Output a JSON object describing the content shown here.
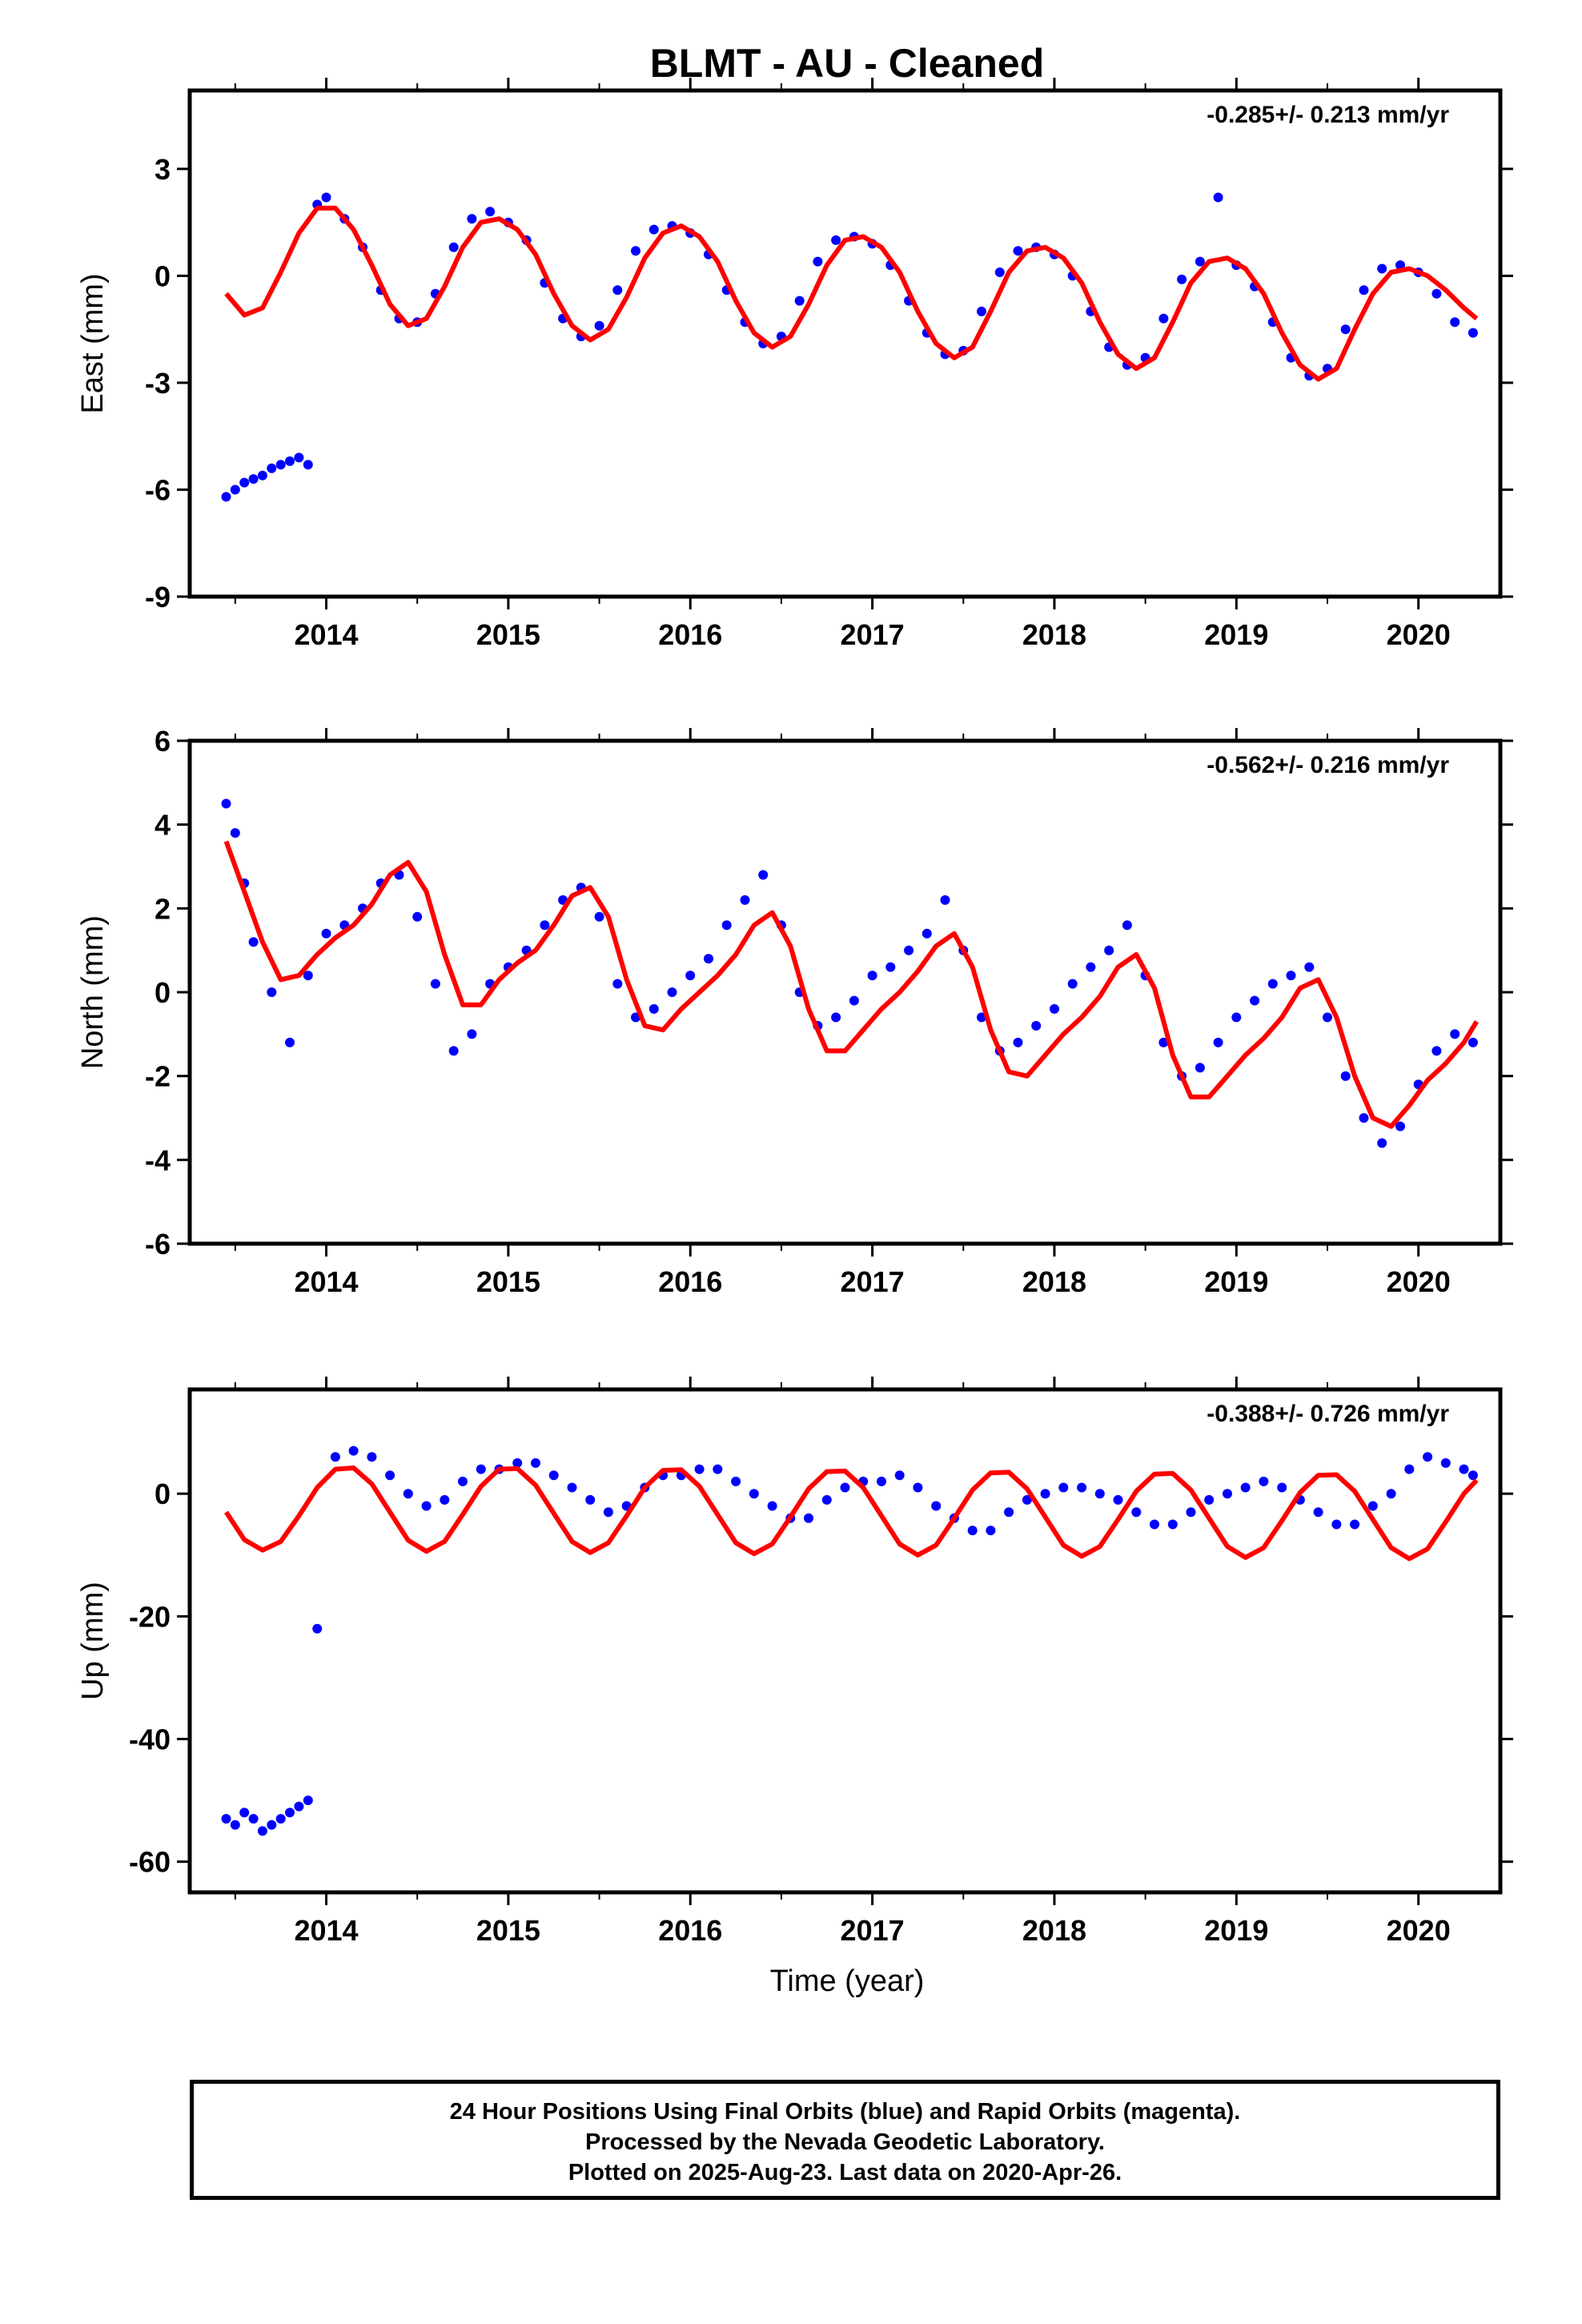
{
  "title": "BLMT  - AU - Cleaned",
  "xlabel": "Time (year)",
  "footer": [
    "24 Hour Positions Using Final Orbits (blue) and Rapid Orbits (magenta).",
    "Processed by the Nevada Geodetic Laboratory.",
    "Plotted on 2025-Aug-23. Last data on 2020-Apr-26."
  ],
  "colors": {
    "final_orbits": "#0000ff",
    "model_fit": "#ff0000",
    "axes": "#000000"
  },
  "chart_data": [
    {
      "type": "scatter",
      "ylabel": "East (mm)",
      "rate_label": "-0.285+/- 0.213 mm/yr",
      "xlim": [
        2013.25,
        2020.45
      ],
      "ylim": [
        -9,
        5.2
      ],
      "yticks": [
        -9,
        -6,
        -3,
        0,
        3
      ],
      "xticks": [
        2014,
        2015,
        2016,
        2017,
        2018,
        2019,
        2020
      ],
      "series": [
        {
          "kind": "scatter",
          "color": "#0000ff",
          "x": [
            2013.45,
            2013.5,
            2013.55,
            2013.6,
            2013.65,
            2013.7,
            2013.75,
            2013.8,
            2013.85,
            2013.9,
            2013.95,
            2014.0,
            2014.1,
            2014.2,
            2014.3,
            2014.4,
            2014.5,
            2014.6,
            2014.7,
            2014.8,
            2014.9,
            2015.0,
            2015.1,
            2015.2,
            2015.3,
            2015.4,
            2015.5,
            2015.6,
            2015.7,
            2015.8,
            2015.9,
            2016.0,
            2016.1,
            2016.2,
            2016.3,
            2016.4,
            2016.5,
            2016.6,
            2016.7,
            2016.8,
            2016.9,
            2017.0,
            2017.1,
            2017.2,
            2017.3,
            2017.4,
            2017.5,
            2017.6,
            2017.7,
            2017.8,
            2017.9,
            2018.0,
            2018.1,
            2018.2,
            2018.3,
            2018.4,
            2018.5,
            2018.6,
            2018.7,
            2018.8,
            2018.9,
            2019.0,
            2019.1,
            2019.2,
            2019.3,
            2019.4,
            2019.5,
            2019.6,
            2019.7,
            2019.8,
            2019.9,
            2020.0,
            2020.1,
            2020.2,
            2020.3
          ],
          "y": [
            -6.2,
            -6.0,
            -5.8,
            -5.7,
            -5.6,
            -5.4,
            -5.3,
            -5.2,
            -5.1,
            -5.3,
            2.0,
            2.2,
            1.6,
            0.8,
            -0.4,
            -1.2,
            -1.3,
            -0.5,
            0.8,
            1.6,
            1.8,
            1.5,
            1.0,
            -0.2,
            -1.2,
            -1.7,
            -1.4,
            -0.4,
            0.7,
            1.3,
            1.4,
            1.2,
            0.6,
            -0.4,
            -1.3,
            -1.9,
            -1.7,
            -0.7,
            0.4,
            1.0,
            1.1,
            0.9,
            0.3,
            -0.7,
            -1.6,
            -2.2,
            -2.1,
            -1.0,
            0.1,
            0.7,
            0.8,
            0.6,
            0.0,
            -1.0,
            -2.0,
            -2.5,
            -2.3,
            -1.2,
            -0.1,
            0.4,
            2.2,
            0.3,
            -0.3,
            -1.3,
            -2.3,
            -2.8,
            -2.6,
            -1.5,
            -0.4,
            0.2,
            0.3,
            0.1,
            -0.5,
            -1.3,
            -1.6
          ]
        },
        {
          "kind": "line",
          "color": "#ff0000",
          "x": [
            2013.45,
            2013.55,
            2013.65,
            2013.75,
            2013.85,
            2013.95,
            2014.05,
            2014.15,
            2014.25,
            2014.35,
            2014.45,
            2014.55,
            2014.65,
            2014.75,
            2014.85,
            2014.95,
            2015.05,
            2015.15,
            2015.25,
            2015.35,
            2015.45,
            2015.55,
            2015.65,
            2015.75,
            2015.85,
            2015.95,
            2016.05,
            2016.15,
            2016.25,
            2016.35,
            2016.45,
            2016.55,
            2016.65,
            2016.75,
            2016.85,
            2016.95,
            2017.05,
            2017.15,
            2017.25,
            2017.35,
            2017.45,
            2017.55,
            2017.65,
            2017.75,
            2017.85,
            2017.95,
            2018.05,
            2018.15,
            2018.25,
            2018.35,
            2018.45,
            2018.55,
            2018.65,
            2018.75,
            2018.85,
            2018.95,
            2019.05,
            2019.15,
            2019.25,
            2019.35,
            2019.45,
            2019.55,
            2019.65,
            2019.75,
            2019.85,
            2019.95,
            2020.05,
            2020.15,
            2020.25,
            2020.32
          ],
          "y": [
            -0.5,
            -1.1,
            -0.9,
            0.1,
            1.2,
            1.9,
            1.9,
            1.3,
            0.3,
            -0.8,
            -1.4,
            -1.2,
            -0.3,
            0.8,
            1.5,
            1.6,
            1.3,
            0.6,
            -0.5,
            -1.4,
            -1.8,
            -1.5,
            -0.6,
            0.5,
            1.2,
            1.4,
            1.1,
            0.4,
            -0.7,
            -1.6,
            -2.0,
            -1.7,
            -0.8,
            0.3,
            1.0,
            1.1,
            0.8,
            0.1,
            -1.0,
            -1.9,
            -2.3,
            -2.0,
            -1.0,
            0.1,
            0.7,
            0.8,
            0.5,
            -0.2,
            -1.3,
            -2.2,
            -2.6,
            -2.3,
            -1.3,
            -0.2,
            0.4,
            0.5,
            0.2,
            -0.5,
            -1.6,
            -2.5,
            -2.9,
            -2.6,
            -1.5,
            -0.5,
            0.1,
            0.2,
            0.0,
            -0.4,
            -0.9,
            -1.2
          ]
        }
      ]
    },
    {
      "type": "scatter",
      "ylabel": "North (mm)",
      "rate_label": "-0.562+/- 0.216 mm/yr",
      "xlim": [
        2013.25,
        2020.45
      ],
      "ylim": [
        -6,
        6
      ],
      "yticks": [
        -6,
        -4,
        -2,
        0,
        2,
        4,
        6
      ],
      "xticks": [
        2014,
        2015,
        2016,
        2017,
        2018,
        2019,
        2020
      ],
      "series": [
        {
          "kind": "scatter",
          "color": "#0000ff",
          "x": [
            2013.45,
            2013.5,
            2013.55,
            2013.6,
            2013.7,
            2013.8,
            2013.9,
            2014.0,
            2014.1,
            2014.2,
            2014.3,
            2014.4,
            2014.5,
            2014.6,
            2014.7,
            2014.8,
            2014.9,
            2015.0,
            2015.1,
            2015.2,
            2015.3,
            2015.4,
            2015.5,
            2015.6,
            2015.7,
            2015.8,
            2015.9,
            2016.0,
            2016.1,
            2016.2,
            2016.3,
            2016.4,
            2016.5,
            2016.6,
            2016.7,
            2016.8,
            2016.9,
            2017.0,
            2017.1,
            2017.2,
            2017.3,
            2017.4,
            2017.5,
            2017.6,
            2017.7,
            2017.8,
            2017.9,
            2018.0,
            2018.1,
            2018.2,
            2018.3,
            2018.4,
            2018.5,
            2018.6,
            2018.7,
            2018.8,
            2018.9,
            2019.0,
            2019.1,
            2019.2,
            2019.3,
            2019.4,
            2019.5,
            2019.6,
            2019.7,
            2019.8,
            2019.9,
            2020.0,
            2020.1,
            2020.2,
            2020.3
          ],
          "y": [
            4.5,
            3.8,
            2.6,
            1.2,
            0.0,
            -1.2,
            0.4,
            1.4,
            1.6,
            2.0,
            2.6,
            2.8,
            1.8,
            0.2,
            -1.4,
            -1.0,
            0.2,
            0.6,
            1.0,
            1.6,
            2.2,
            2.5,
            1.8,
            0.2,
            -0.6,
            -0.4,
            0.0,
            0.4,
            0.8,
            1.6,
            2.2,
            2.8,
            1.6,
            0.0,
            -0.8,
            -0.6,
            -0.2,
            0.4,
            0.6,
            1.0,
            1.4,
            2.2,
            1.0,
            -0.6,
            -1.4,
            -1.2,
            -0.8,
            -0.4,
            0.2,
            0.6,
            1.0,
            1.6,
            0.4,
            -1.2,
            -2.0,
            -1.8,
            -1.2,
            -0.6,
            -0.2,
            0.2,
            0.4,
            0.6,
            -0.6,
            -2.0,
            -3.0,
            -3.6,
            -3.2,
            -2.2,
            -1.4,
            -1.0,
            -1.2
          ]
        },
        {
          "kind": "line",
          "color": "#ff0000",
          "x": [
            2013.45,
            2013.55,
            2013.65,
            2013.75,
            2013.85,
            2013.95,
            2014.05,
            2014.15,
            2014.25,
            2014.35,
            2014.45,
            2014.55,
            2014.65,
            2014.75,
            2014.85,
            2014.95,
            2015.05,
            2015.15,
            2015.25,
            2015.35,
            2015.45,
            2015.55,
            2015.65,
            2015.75,
            2015.85,
            2015.95,
            2016.05,
            2016.15,
            2016.25,
            2016.35,
            2016.45,
            2016.55,
            2016.65,
            2016.75,
            2016.85,
            2016.95,
            2017.05,
            2017.15,
            2017.25,
            2017.35,
            2017.45,
            2017.55,
            2017.65,
            2017.75,
            2017.85,
            2017.95,
            2018.05,
            2018.15,
            2018.25,
            2018.35,
            2018.45,
            2018.55,
            2018.65,
            2018.75,
            2018.85,
            2018.95,
            2019.05,
            2019.15,
            2019.25,
            2019.35,
            2019.45,
            2019.55,
            2019.65,
            2019.75,
            2019.85,
            2019.95,
            2020.05,
            2020.15,
            2020.25,
            2020.32
          ],
          "y": [
            3.6,
            2.4,
            1.2,
            0.3,
            0.4,
            0.9,
            1.3,
            1.6,
            2.1,
            2.8,
            3.1,
            2.4,
            0.9,
            -0.3,
            -0.3,
            0.3,
            0.7,
            1.0,
            1.6,
            2.3,
            2.5,
            1.8,
            0.3,
            -0.8,
            -0.9,
            -0.4,
            0.0,
            0.4,
            0.9,
            1.6,
            1.9,
            1.1,
            -0.4,
            -1.4,
            -1.4,
            -0.9,
            -0.4,
            0.0,
            0.5,
            1.1,
            1.4,
            0.6,
            -0.9,
            -1.9,
            -2.0,
            -1.5,
            -1.0,
            -0.6,
            -0.1,
            0.6,
            0.9,
            0.1,
            -1.5,
            -2.5,
            -2.5,
            -2.0,
            -1.5,
            -1.1,
            -0.6,
            0.1,
            0.3,
            -0.6,
            -2.0,
            -3.0,
            -3.2,
            -2.7,
            -2.1,
            -1.7,
            -1.2,
            -0.7
          ]
        }
      ]
    },
    {
      "type": "scatter",
      "ylabel": "Up (mm)",
      "rate_label": "-0.388+/- 0.726 mm/yr",
      "xlim": [
        2013.25,
        2020.45
      ],
      "ylim": [
        -65,
        17
      ],
      "yticks": [
        -60,
        -40,
        -20,
        0
      ],
      "xticks": [
        2014,
        2015,
        2016,
        2017,
        2018,
        2019,
        2020
      ],
      "series": [
        {
          "kind": "scatter",
          "color": "#0000ff",
          "x": [
            2013.45,
            2013.5,
            2013.55,
            2013.6,
            2013.65,
            2013.7,
            2013.75,
            2013.8,
            2013.85,
            2013.9,
            2013.95,
            2014.05,
            2014.15,
            2014.25,
            2014.35,
            2014.45,
            2014.55,
            2014.65,
            2014.75,
            2014.85,
            2014.95,
            2015.05,
            2015.15,
            2015.25,
            2015.35,
            2015.45,
            2015.55,
            2015.65,
            2015.75,
            2015.85,
            2015.95,
            2016.05,
            2016.15,
            2016.25,
            2016.35,
            2016.45,
            2016.55,
            2016.65,
            2016.75,
            2016.85,
            2016.95,
            2017.05,
            2017.15,
            2017.25,
            2017.35,
            2017.45,
            2017.55,
            2017.65,
            2017.75,
            2017.85,
            2017.95,
            2018.05,
            2018.15,
            2018.25,
            2018.35,
            2018.45,
            2018.55,
            2018.65,
            2018.75,
            2018.85,
            2018.95,
            2019.05,
            2019.15,
            2019.25,
            2019.35,
            2019.45,
            2019.55,
            2019.65,
            2019.75,
            2019.85,
            2019.95,
            2020.05,
            2020.15,
            2020.25,
            2020.3
          ],
          "y": [
            -53,
            -54,
            -52,
            -53,
            -55,
            -54,
            -53,
            -52,
            -51,
            -50,
            -22,
            6,
            7,
            6,
            3,
            0,
            -2,
            -1,
            2,
            4,
            4,
            5,
            5,
            3,
            1,
            -1,
            -3,
            -2,
            1,
            3,
            3,
            4,
            4,
            2,
            0,
            -2,
            -4,
            -4,
            -1,
            1,
            2,
            2,
            3,
            1,
            -2,
            -4,
            -6,
            -6,
            -3,
            -1,
            0,
            1,
            1,
            0,
            -1,
            -3,
            -5,
            -5,
            -3,
            -1,
            0,
            1,
            2,
            1,
            -1,
            -3,
            -5,
            -5,
            -2,
            0,
            4,
            6,
            5,
            4,
            3
          ]
        },
        {
          "kind": "line",
          "color": "#ff0000",
          "x": [
            2013.45,
            2013.55,
            2013.65,
            2013.75,
            2013.85,
            2013.95,
            2014.05,
            2014.15,
            2014.25,
            2014.35,
            2014.45,
            2014.55,
            2014.65,
            2014.75,
            2014.85,
            2014.95,
            2015.05,
            2015.15,
            2015.25,
            2015.35,
            2015.45,
            2015.55,
            2015.65,
            2015.75,
            2015.85,
            2015.95,
            2016.05,
            2016.15,
            2016.25,
            2016.35,
            2016.45,
            2016.55,
            2016.65,
            2016.75,
            2016.85,
            2016.95,
            2017.05,
            2017.15,
            2017.25,
            2017.35,
            2017.45,
            2017.55,
            2017.65,
            2017.75,
            2017.85,
            2017.95,
            2018.05,
            2018.15,
            2018.25,
            2018.35,
            2018.45,
            2018.55,
            2018.65,
            2018.75,
            2018.85,
            2018.95,
            2019.05,
            2019.15,
            2019.25,
            2019.35,
            2019.45,
            2019.55,
            2019.65,
            2019.75,
            2019.85,
            2019.95,
            2020.05,
            2020.15,
            2020.25,
            2020.32
          ],
          "y": [
            -3,
            -7.5,
            -9.2,
            -7.8,
            -3.6,
            1.0,
            4.0,
            4.2,
            1.6,
            -3.0,
            -7.6,
            -9.4,
            -7.8,
            -3.4,
            1.2,
            4.0,
            4.1,
            1.4,
            -3.2,
            -7.8,
            -9.6,
            -8.0,
            -3.6,
            1.0,
            3.8,
            3.9,
            1.2,
            -3.4,
            -8.0,
            -9.8,
            -8.2,
            -3.8,
            0.8,
            3.6,
            3.7,
            1.0,
            -3.6,
            -8.2,
            -10.0,
            -8.4,
            -4.0,
            0.6,
            3.4,
            3.5,
            0.8,
            -3.8,
            -8.4,
            -10.2,
            -8.6,
            -4.2,
            0.4,
            3.2,
            3.3,
            0.6,
            -4.0,
            -8.6,
            -10.4,
            -8.8,
            -4.4,
            0.2,
            3.0,
            3.1,
            0.4,
            -4.2,
            -8.8,
            -10.6,
            -9.0,
            -4.6,
            0.0,
            2.2
          ]
        }
      ]
    }
  ]
}
